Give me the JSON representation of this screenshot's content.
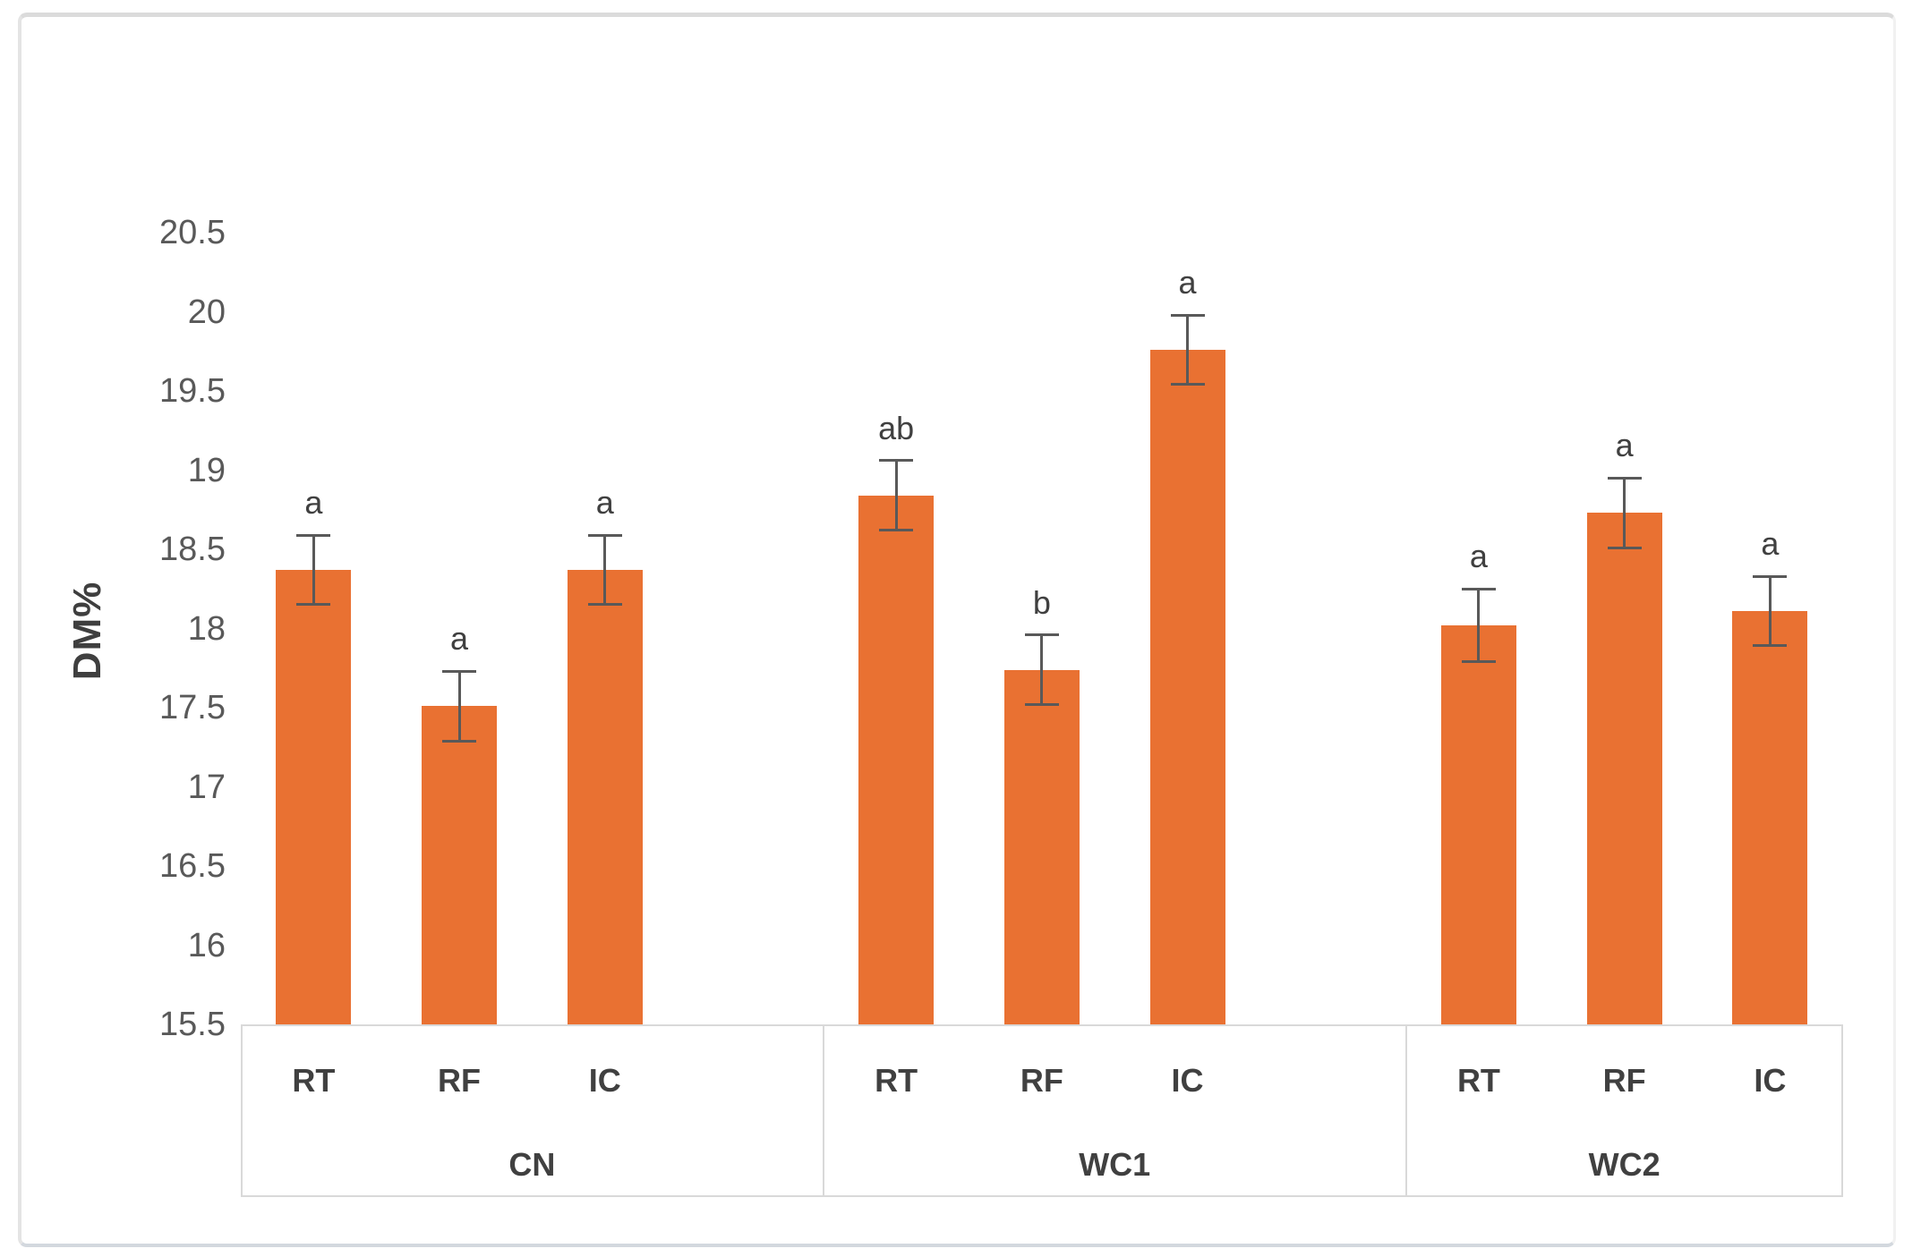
{
  "chart_data": {
    "type": "bar",
    "title": "",
    "xlabel": "",
    "ylabel": "DM%",
    "ylim": [
      15.5,
      20.5
    ],
    "ytick_step": 0.5,
    "yticks": [
      "20.5",
      "20",
      "19.5",
      "19",
      "18.5",
      "18",
      "17.5",
      "17",
      "16.5",
      "16",
      "15.5"
    ],
    "legend": "none",
    "grid": "off",
    "bar_color": "#E97132",
    "error_bar_color": "#595959",
    "axis_box_border_color": "#D9D9D9",
    "tick_label_color": "#595959",
    "category_label_color": "#404040",
    "groups": [
      {
        "label": "CN",
        "bars": [
          {
            "label": "RT",
            "value": 18.37,
            "error": 0.22,
            "sig": "a"
          },
          {
            "label": "RF",
            "value": 17.51,
            "error": 0.22,
            "sig": "a"
          },
          {
            "label": "IC",
            "value": 18.37,
            "error": 0.22,
            "sig": "a"
          }
        ]
      },
      {
        "label": "WC1",
        "bars": [
          {
            "label": "RT",
            "value": 18.84,
            "error": 0.22,
            "sig": "ab"
          },
          {
            "label": "RF",
            "value": 17.74,
            "error": 0.22,
            "sig": "b"
          },
          {
            "label": "IC",
            "value": 19.76,
            "error": 0.22,
            "sig": "a"
          }
        ]
      },
      {
        "label": "WC2",
        "bars": [
          {
            "label": "RT",
            "value": 18.02,
            "error": 0.23,
            "sig": "a"
          },
          {
            "label": "RF",
            "value": 18.73,
            "error": 0.22,
            "sig": "a"
          },
          {
            "label": "IC",
            "value": 18.11,
            "error": 0.22,
            "sig": "a"
          }
        ]
      }
    ]
  }
}
